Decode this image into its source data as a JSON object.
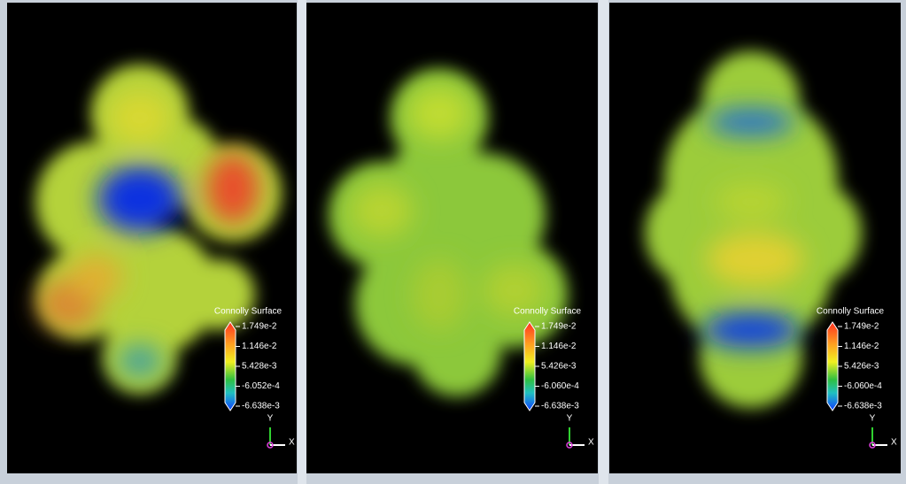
{
  "panels": [
    {
      "legend": {
        "title": "Connolly Surface",
        "labels": [
          "1.749e-2",
          "1.146e-2",
          "5.428e-3",
          "-6.052e-4",
          "-6.638e-3"
        ]
      },
      "axes": {
        "y": "Y",
        "x": "X"
      }
    },
    {
      "legend": {
        "title": "Connolly Surface",
        "labels": [
          "1.749e-2",
          "1.146e-2",
          "5.426e-3",
          "-6.060e-4",
          "-6.638e-3"
        ]
      },
      "axes": {
        "y": "Y",
        "x": "X"
      }
    },
    {
      "legend": {
        "title": "Connolly Surface",
        "labels": [
          "1.749e-2",
          "1.146e-2",
          "5.426e-3",
          "-6.060e-4",
          "-6.638e-3"
        ]
      },
      "axes": {
        "y": "Y",
        "x": "X"
      }
    }
  ]
}
